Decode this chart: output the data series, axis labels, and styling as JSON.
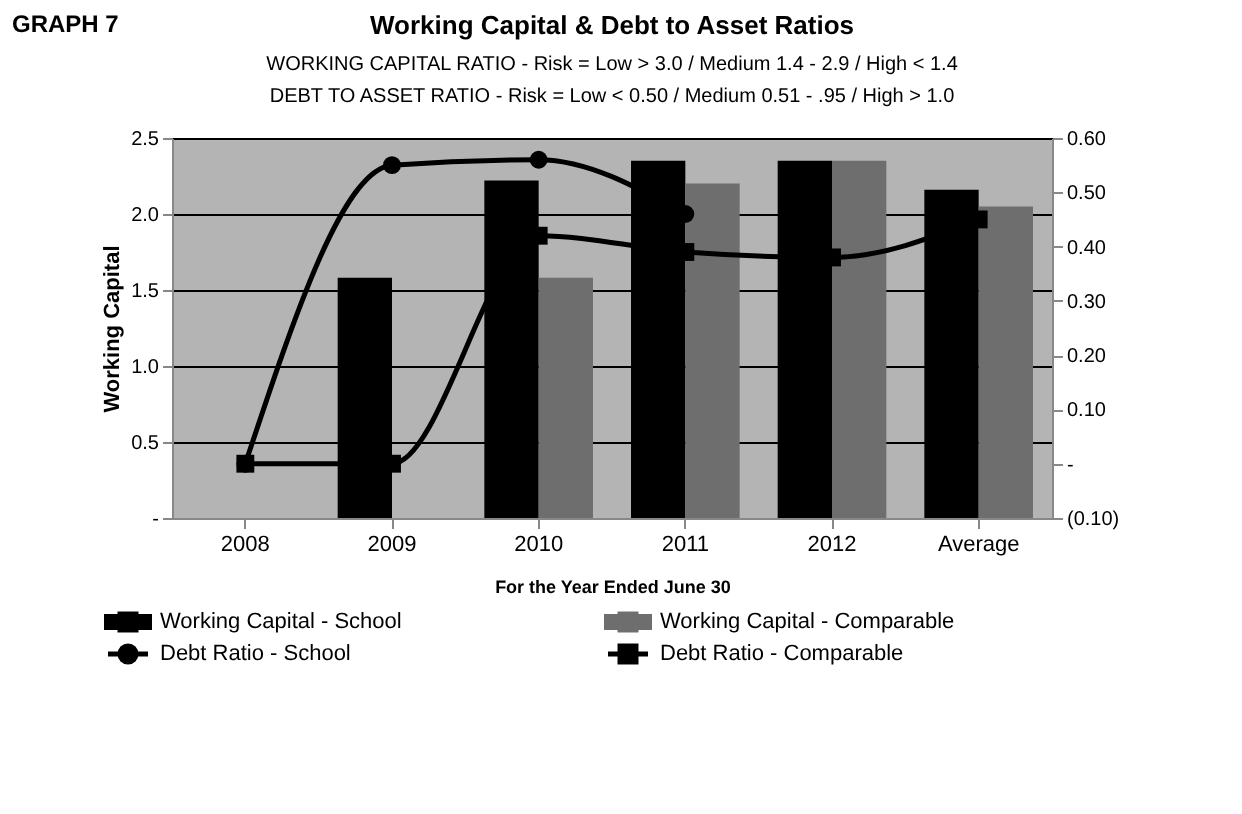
{
  "chart_data": {
    "type": "bar",
    "title": "Working Capital & Debt to Asset Ratios",
    "subtitle": [
      "WORKING CAPITAL RATIO - Risk = Low > 3.0 / Medium 1.4 - 2.9 / High < 1.4",
      "DEBT TO ASSET RATIO - Risk = Low < 0.50 / Medium 0.51 - .95 / High > 1.0"
    ],
    "annotations": [
      "GRAPH 7"
    ],
    "xlabel": "For the Year Ended June 30",
    "ylabel": "Working Capital",
    "categories": [
      "2008",
      "2009",
      "2010",
      "2011",
      "2012",
      "Average"
    ],
    "series": [
      {
        "name": "Working Capital - School",
        "color": "#000000",
        "values": [
          0,
          1.58,
          2.22,
          2.35,
          2.35,
          2.16
        ]
      },
      {
        "name": "Working Capital - Comparable",
        "color": "#6e6e6e",
        "values": [
          0,
          0,
          1.58,
          2.2,
          2.35,
          2.05
        ]
      },
      {
        "name": "Debt Ratio - School",
        "type": "line",
        "axis": "y2",
        "marker": "circle",
        "color": "#000000",
        "values": [
          0,
          0.55,
          0.56,
          0.46,
          null,
          null
        ]
      },
      {
        "name": "Debt Ratio - Comparable",
        "type": "line",
        "axis": "y2",
        "marker": "square",
        "color": "#000000",
        "values": [
          0,
          0,
          0.42,
          0.39,
          0.38,
          0.45
        ]
      }
    ],
    "ylim": [
      0,
      2.5
    ],
    "yticks": [
      {
        "value": 0,
        "label": "-"
      },
      {
        "value": 0.5,
        "label": "0.5"
      },
      {
        "value": 1,
        "label": "1.0"
      },
      {
        "value": 1.5,
        "label": "1.5"
      },
      {
        "value": 2,
        "label": "2.0"
      },
      {
        "value": 2.5,
        "label": "2.5"
      }
    ],
    "y2lim": [
      -0.1,
      0.6
    ],
    "y2ticks": [
      {
        "value": -0.1,
        "label": "(0.10)"
      },
      {
        "value": 0,
        "label": "-"
      },
      {
        "value": 0.1,
        "label": "0.10"
      },
      {
        "value": 0.2,
        "label": "0.20"
      },
      {
        "value": 0.3,
        "label": "0.30"
      },
      {
        "value": 0.4,
        "label": "0.40"
      },
      {
        "value": 0.5,
        "label": "0.50"
      },
      {
        "value": 0.6,
        "label": "0.60"
      }
    ],
    "grid": "y",
    "legend": "bottom",
    "line_style": "solid"
  }
}
